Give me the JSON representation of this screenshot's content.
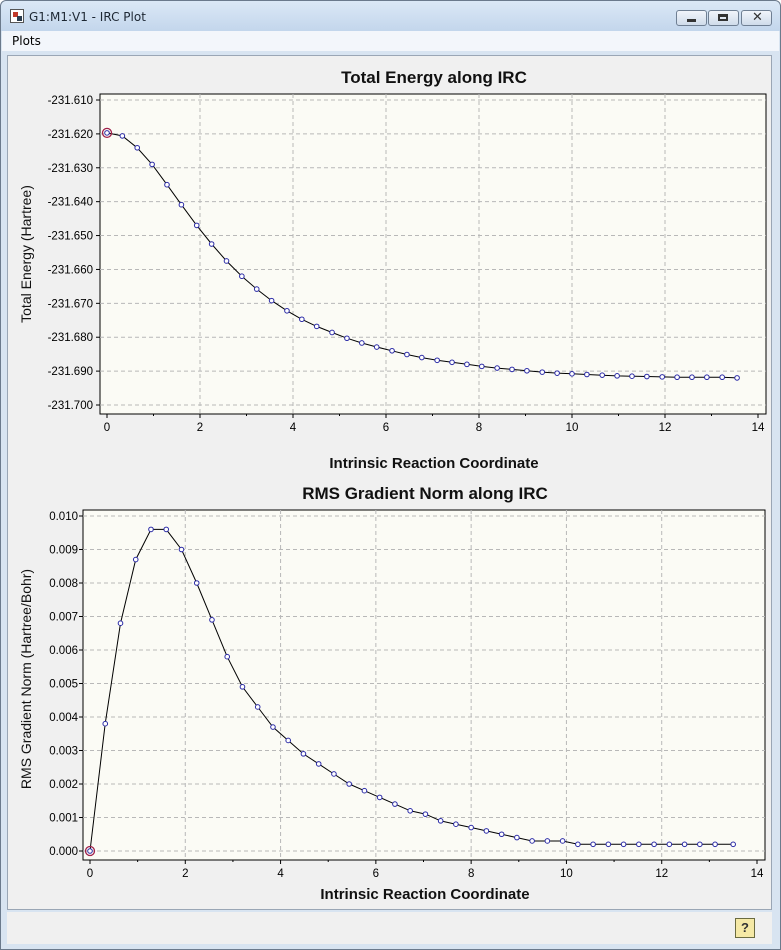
{
  "window": {
    "title": "G1:M1:V1 - IRC Plot",
    "icons": {
      "app": "app-icon",
      "minimize": "minimize-icon",
      "maximize": "maximize-icon",
      "close": "close-icon",
      "help": "help-icon"
    }
  },
  "menu": {
    "items": [
      "Plots"
    ]
  },
  "colors": {
    "line": "#000000",
    "marker": "#2a2aa6",
    "highlight": "#a0204a",
    "plot_bg": "#fbfbf5",
    "grid": "#b8b8b8"
  },
  "chart_data": [
    {
      "type": "line",
      "title": "Total Energy along IRC",
      "xlabel": "Intrinsic Reaction Coordinate",
      "ylabel": "Total Energy (Hartree)",
      "xlim": [
        0,
        14
      ],
      "ylim": [
        -231.7,
        -231.61
      ],
      "xticks": [
        0,
        2,
        4,
        6,
        8,
        10,
        12,
        14
      ],
      "yticks": [
        "-231.610",
        "-231.620",
        "-231.630",
        "-231.640",
        "-231.650",
        "-231.660",
        "-231.670",
        "-231.680",
        "-231.690",
        "-231.700"
      ],
      "grid": true,
      "highlight_point_index": 0,
      "series": [
        {
          "x": [
            0.0,
            0.33,
            0.65,
            0.97,
            1.29,
            1.6,
            1.93,
            2.25,
            2.57,
            2.9,
            3.22,
            3.54,
            3.87,
            4.19,
            4.51,
            4.84,
            5.16,
            5.48,
            5.8,
            6.13,
            6.45,
            6.77,
            7.1,
            7.42,
            7.74,
            8.06,
            8.39,
            8.71,
            9.03,
            9.36,
            9.68,
            10.0,
            10.32,
            10.65,
            10.97,
            11.29,
            11.61,
            11.94,
            12.26,
            12.58,
            12.9,
            13.23,
            13.55
          ],
          "y": [
            -231.6197,
            -231.6206,
            -231.6241,
            -231.629,
            -231.635,
            -231.6409,
            -231.647,
            -231.6525,
            -231.6575,
            -231.662,
            -231.6658,
            -231.6692,
            -231.6722,
            -231.6747,
            -231.6768,
            -231.6786,
            -231.6803,
            -231.6817,
            -231.6829,
            -231.684,
            -231.6851,
            -231.686,
            -231.6868,
            -231.6874,
            -231.688,
            -231.6886,
            -231.6891,
            -231.6895,
            -231.6899,
            -231.6903,
            -231.6906,
            -231.6908,
            -231.691,
            -231.6912,
            -231.6914,
            -231.6915,
            -231.6916,
            -231.6917,
            -231.6918,
            -231.6918,
            -231.6918,
            -231.6918,
            -231.692
          ]
        }
      ]
    },
    {
      "type": "line",
      "title": "RMS Gradient Norm along IRC",
      "xlabel": "Intrinsic Reaction Coordinate",
      "ylabel": "RMS Gradient Norm (Hartree/Bohr)",
      "xlim": [
        0,
        14
      ],
      "ylim": [
        0,
        0.01
      ],
      "xticks": [
        0,
        2,
        4,
        6,
        8,
        10,
        12,
        14
      ],
      "yticks": [
        "0.000",
        "0.001",
        "0.002",
        "0.003",
        "0.004",
        "0.005",
        "0.006",
        "0.007",
        "0.008",
        "0.009",
        "0.010"
      ],
      "grid": true,
      "highlight_point_index": 0,
      "series": [
        {
          "x": [
            0.0,
            0.32,
            0.64,
            0.96,
            1.28,
            1.6,
            1.92,
            2.24,
            2.56,
            2.88,
            3.2,
            3.52,
            3.84,
            4.16,
            4.48,
            4.8,
            5.12,
            5.44,
            5.76,
            6.08,
            6.4,
            6.72,
            7.04,
            7.36,
            7.68,
            8.0,
            8.32,
            8.64,
            8.96,
            9.28,
            9.6,
            9.92,
            10.24,
            10.56,
            10.88,
            11.2,
            11.52,
            11.84,
            12.16,
            12.48,
            12.8,
            13.12,
            13.5
          ],
          "y": [
            0.0,
            0.0038,
            0.0068,
            0.0087,
            0.0096,
            0.0096,
            0.009,
            0.008,
            0.0069,
            0.0058,
            0.0049,
            0.0043,
            0.0037,
            0.0033,
            0.0029,
            0.0026,
            0.0023,
            0.002,
            0.0018,
            0.0016,
            0.0014,
            0.0012,
            0.0011,
            0.0009,
            0.0008,
            0.0007,
            0.0006,
            0.0005,
            0.0004,
            0.0003,
            0.0003,
            0.0003,
            0.0002,
            0.0002,
            0.0002,
            0.0002,
            0.0002,
            0.0002,
            0.0002,
            0.0002,
            0.0002,
            0.0002,
            0.0002
          ]
        }
      ]
    }
  ]
}
